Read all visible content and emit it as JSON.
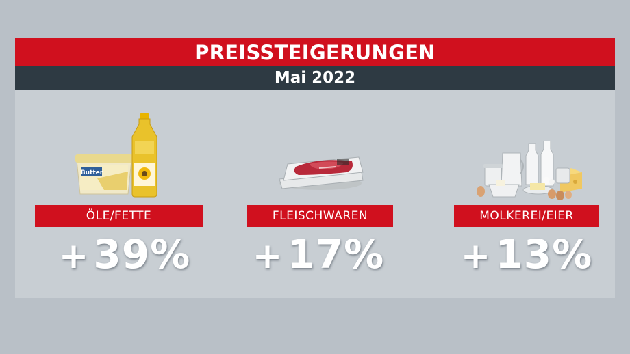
{
  "header": {
    "title": "PREISSTEIGERUNGEN",
    "subtitle": "Mai 2022"
  },
  "categories": [
    {
      "label": "ÖLE/FETTE",
      "value": "+39%",
      "icon": "butter-and-oil-icon",
      "brand_text": "Butter"
    },
    {
      "label": "FLEISCHWAREN",
      "value": "+17%",
      "icon": "packaged-meat-icon"
    },
    {
      "label": "MOLKEREI/EIER",
      "value": "+13%",
      "icon": "dairy-and-eggs-icon"
    }
  ],
  "colors": {
    "background": "#b9c0c7",
    "panel": "#c8ced3",
    "accent_red": "#d0101e",
    "dark_bar": "#2e3a43",
    "text": "#ffffff"
  }
}
